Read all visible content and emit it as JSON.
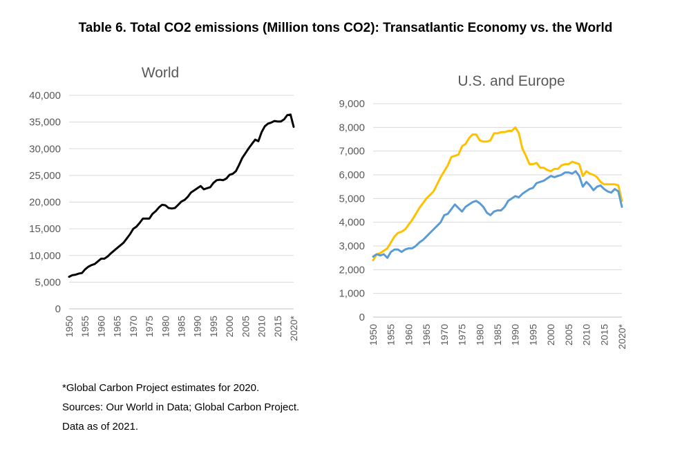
{
  "title": "Table 6. Total CO2 emissions (Million tons CO2): Transatlantic Economy vs. the World",
  "notes": [
    "*Global Carbon Project estimates for 2020.",
    "Sources: Our World in Data; Global Carbon Project.",
    "Data as of 2021."
  ],
  "colors": {
    "world": "#000000",
    "us": "#5b9bd5",
    "europe": "#ffc000",
    "grid": "#d9d9d9",
    "axis_text": "#595959"
  },
  "chart_data": [
    {
      "type": "line",
      "title": "World",
      "xlabel": "",
      "ylabel": "",
      "ylim": [
        0,
        40000
      ],
      "yticks": [
        0,
        5000,
        10000,
        15000,
        20000,
        25000,
        30000,
        35000,
        40000
      ],
      "ytick_labels": [
        "0",
        "5,000",
        "10,000",
        "15,000",
        "20,000",
        "25,000",
        "30,000",
        "35,000",
        "40,000"
      ],
      "xlim": [
        1950,
        2020
      ],
      "xticks": [
        1950,
        1955,
        1960,
        1965,
        1970,
        1975,
        1980,
        1985,
        1990,
        1995,
        2000,
        2005,
        2010,
        2015,
        2020
      ],
      "xtick_labels": [
        "1950",
        "1955",
        "1960",
        "1965",
        "1970",
        "1975",
        "1980",
        "1985",
        "1990",
        "1995",
        "2000",
        "2005",
        "2010",
        "2015",
        "2020*"
      ],
      "grid": true,
      "series": [
        {
          "name": "World",
          "x": [
            1950,
            1951,
            1952,
            1953,
            1954,
            1955,
            1956,
            1957,
            1958,
            1959,
            1960,
            1961,
            1962,
            1963,
            1964,
            1965,
            1966,
            1967,
            1968,
            1969,
            1970,
            1971,
            1972,
            1973,
            1974,
            1975,
            1976,
            1977,
            1978,
            1979,
            1980,
            1981,
            1982,
            1983,
            1984,
            1985,
            1986,
            1987,
            1988,
            1989,
            1990,
            1991,
            1992,
            1993,
            1994,
            1995,
            1996,
            1997,
            1998,
            1999,
            2000,
            2001,
            2002,
            2003,
            2004,
            2005,
            2006,
            2007,
            2008,
            2009,
            2010,
            2011,
            2012,
            2013,
            2014,
            2015,
            2016,
            2017,
            2018,
            2019,
            2020
          ],
          "values": [
            6000,
            6300,
            6400,
            6600,
            6700,
            7400,
            7900,
            8200,
            8400,
            8900,
            9400,
            9400,
            9800,
            10400,
            10900,
            11400,
            11900,
            12400,
            13200,
            14000,
            15000,
            15400,
            16100,
            16900,
            16900,
            16900,
            17800,
            18300,
            19000,
            19500,
            19400,
            18900,
            18800,
            18900,
            19500,
            20100,
            20400,
            21000,
            21800,
            22200,
            22600,
            23000,
            22400,
            22600,
            22800,
            23600,
            24100,
            24200,
            24100,
            24400,
            25100,
            25300,
            25800,
            27000,
            28300,
            29200,
            30100,
            30900,
            31700,
            31400,
            33100,
            34200,
            34700,
            34900,
            35200,
            35100,
            35100,
            35500,
            36300,
            36400,
            34100
          ]
        }
      ]
    },
    {
      "type": "line",
      "title": "U.S. and Europe",
      "xlabel": "",
      "ylabel": "",
      "ylim": [
        0,
        9000
      ],
      "yticks": [
        0,
        1000,
        2000,
        3000,
        4000,
        5000,
        6000,
        7000,
        8000,
        9000
      ],
      "ytick_labels": [
        "0",
        "1,000",
        "2,000",
        "3,000",
        "4,000",
        "5,000",
        "6,000",
        "7,000",
        "8,000",
        "9,000"
      ],
      "xlim": [
        1950,
        2020
      ],
      "xticks": [
        1950,
        1955,
        1960,
        1965,
        1970,
        1975,
        1980,
        1985,
        1990,
        1995,
        2000,
        2005,
        2010,
        2015,
        2020
      ],
      "xtick_labels": [
        "1950",
        "1955",
        "1960",
        "1965",
        "1970",
        "1975",
        "1980",
        "1985",
        "1990",
        "1995",
        "2000",
        "2005",
        "2010",
        "2015",
        "2020*"
      ],
      "grid": true,
      "series": [
        {
          "name": "Europe",
          "color": "#ffc000",
          "x": [
            1950,
            1951,
            1952,
            1953,
            1954,
            1955,
            1956,
            1957,
            1958,
            1959,
            1960,
            1961,
            1962,
            1963,
            1964,
            1965,
            1966,
            1967,
            1968,
            1969,
            1970,
            1971,
            1972,
            1973,
            1974,
            1975,
            1976,
            1977,
            1978,
            1979,
            1980,
            1981,
            1982,
            1983,
            1984,
            1985,
            1986,
            1987,
            1988,
            1989,
            1990,
            1991,
            1992,
            1993,
            1994,
            1995,
            1996,
            1997,
            1998,
            1999,
            2000,
            2001,
            2002,
            2003,
            2004,
            2005,
            2006,
            2007,
            2008,
            2009,
            2010,
            2011,
            2012,
            2013,
            2014,
            2015,
            2016,
            2017,
            2018,
            2019,
            2020
          ],
          "values": [
            2400,
            2650,
            2700,
            2800,
            2900,
            3150,
            3400,
            3550,
            3600,
            3700,
            3900,
            4100,
            4350,
            4600,
            4800,
            5000,
            5150,
            5300,
            5600,
            5900,
            6150,
            6400,
            6750,
            6800,
            6850,
            7200,
            7300,
            7550,
            7700,
            7700,
            7450,
            7400,
            7400,
            7450,
            7750,
            7750,
            7800,
            7800,
            7850,
            7850,
            8000,
            7750,
            7100,
            6800,
            6450,
            6450,
            6500,
            6300,
            6300,
            6200,
            6150,
            6250,
            6250,
            6400,
            6450,
            6450,
            6550,
            6500,
            6450,
            5950,
            6150,
            6050,
            6000,
            5900,
            5700,
            5600,
            5600,
            5600,
            5600,
            5550,
            4900
          ]
        },
        {
          "name": "U.S.",
          "color": "#5b9bd5",
          "x": [
            1950,
            1951,
            1952,
            1953,
            1954,
            1955,
            1956,
            1957,
            1958,
            1959,
            1960,
            1961,
            1962,
            1963,
            1964,
            1965,
            1966,
            1967,
            1968,
            1969,
            1970,
            1971,
            1972,
            1973,
            1974,
            1975,
            1976,
            1977,
            1978,
            1979,
            1980,
            1981,
            1982,
            1983,
            1984,
            1985,
            1986,
            1987,
            1988,
            1989,
            1990,
            1991,
            1992,
            1993,
            1994,
            1995,
            1996,
            1997,
            1998,
            1999,
            2000,
            2001,
            2002,
            2003,
            2004,
            2005,
            2006,
            2007,
            2008,
            2009,
            2010,
            2011,
            2012,
            2013,
            2014,
            2015,
            2016,
            2017,
            2018,
            2019,
            2020
          ],
          "values": [
            2550,
            2650,
            2600,
            2650,
            2500,
            2750,
            2850,
            2850,
            2750,
            2850,
            2900,
            2900,
            3000,
            3150,
            3250,
            3400,
            3550,
            3700,
            3850,
            4000,
            4300,
            4350,
            4550,
            4750,
            4600,
            4450,
            4650,
            4750,
            4850,
            4900,
            4800,
            4650,
            4400,
            4300,
            4450,
            4500,
            4500,
            4650,
            4900,
            5000,
            5100,
            5050,
            5200,
            5300,
            5400,
            5450,
            5650,
            5700,
            5750,
            5850,
            5950,
            5900,
            5950,
            6000,
            6100,
            6100,
            6050,
            6150,
            5950,
            5500,
            5700,
            5550,
            5350,
            5500,
            5550,
            5400,
            5300,
            5250,
            5400,
            5300,
            4650
          ]
        }
      ]
    }
  ]
}
